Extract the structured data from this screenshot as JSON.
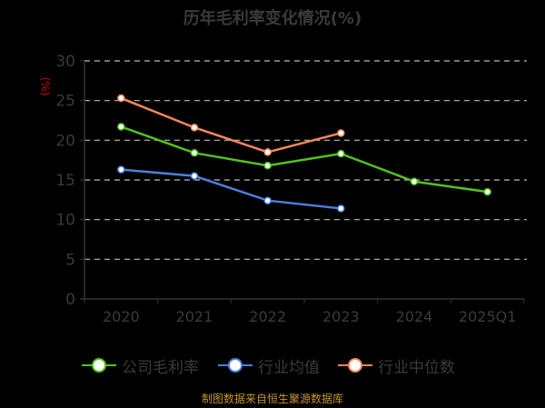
{
  "title": "历年毛利率变化情况(%)",
  "y_axis_unit": "(%)",
  "footer": "制图数据来自恒生聚源数据库",
  "legend": [
    {
      "label": "公司毛利率",
      "color": "#52c41a"
    },
    {
      "label": "行业均值",
      "color": "#4a7fe0"
    },
    {
      "label": "行业中位数",
      "color": "#f5875a"
    }
  ],
  "chart_data": {
    "type": "line",
    "title": "历年毛利率变化情况(%)",
    "xlabel": "",
    "ylabel": "(%)",
    "categories": [
      "2020",
      "2021",
      "2022",
      "2023",
      "2024",
      "2025Q1"
    ],
    "ylim": [
      0,
      30
    ],
    "yticks": [
      0,
      5,
      10,
      15,
      20,
      25,
      30
    ],
    "grid": true,
    "legend_position": "bottom",
    "series": [
      {
        "name": "公司毛利率",
        "color": "#52c41a",
        "values": [
          21.7,
          18.4,
          16.8,
          18.3,
          14.8,
          13.5
        ]
      },
      {
        "name": "行业均值",
        "color": "#4a7fe0",
        "values": [
          16.3,
          15.5,
          12.4,
          11.4,
          null,
          null
        ]
      },
      {
        "name": "行业中位数",
        "color": "#f5875a",
        "values": [
          25.3,
          21.6,
          18.5,
          20.9,
          null,
          null
        ]
      }
    ]
  }
}
